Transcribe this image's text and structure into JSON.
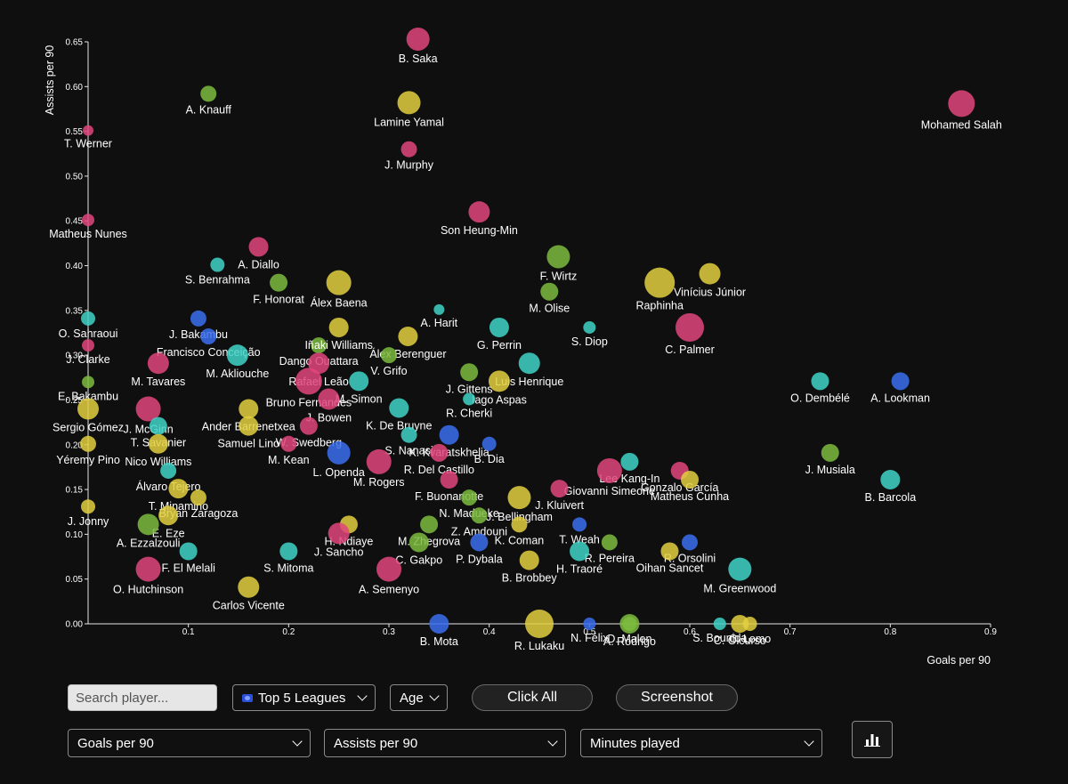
{
  "controls": {
    "search_placeholder": "Search player...",
    "league": "Top 5 Leagues",
    "age": "Age",
    "click_all": "Click All",
    "screenshot": "Screenshot",
    "x_metric": "Goals per 90",
    "y_metric": "Assists per 90",
    "size_metric": "Minutes played",
    "chart_icon": "bar-chart-icon"
  },
  "colors": {
    "background": "#0f0f0f",
    "pink": "#e0457b",
    "yellow": "#e3cf3f",
    "green": "#7cbb3e",
    "cyan": "#3fd3c8",
    "blue": "#3b6ff0"
  },
  "chart_data": {
    "type": "scatter",
    "xlabel": "Goals per 90",
    "ylabel": "Assists per 90",
    "xlim": [
      0,
      0.9
    ],
    "ylim": [
      0,
      0.65
    ],
    "x_ticks": [
      "0.1",
      "0.2",
      "0.3",
      "0.4",
      "0.5",
      "0.6",
      "0.7",
      "0.8",
      "0.9"
    ],
    "y_ticks": [
      "0.00",
      "0.05",
      "0.10",
      "0.15",
      "0.20",
      "0.25",
      "0.30",
      "0.35",
      "0.40",
      "0.45",
      "0.50",
      "0.55",
      "0.60",
      "0.65"
    ],
    "grid": false,
    "points": [
      {
        "label": "B. Saka",
        "x": 0.329,
        "y": 0.653,
        "color": "pink",
        "size": 13
      },
      {
        "label": "A. Knauff",
        "x": 0.12,
        "y": 0.592,
        "color": "green",
        "size": 9
      },
      {
        "label": "Lamine Yamal",
        "x": 0.32,
        "y": 0.582,
        "color": "yellow",
        "size": 13
      },
      {
        "label": "Mohamed Salah",
        "x": 0.871,
        "y": 0.581,
        "color": "pink",
        "size": 15
      },
      {
        "label": "T. Werner",
        "x": 0.0,
        "y": 0.551,
        "color": "pink",
        "size": 6
      },
      {
        "label": "J. Murphy",
        "x": 0.32,
        "y": 0.53,
        "color": "pink",
        "size": 9
      },
      {
        "label": "Son Heung-Min",
        "x": 0.39,
        "y": 0.46,
        "color": "pink",
        "size": 12
      },
      {
        "label": "Matheus Nunes",
        "x": 0.0,
        "y": 0.451,
        "color": "pink",
        "size": 7
      },
      {
        "label": "A. Diallo",
        "x": 0.17,
        "y": 0.421,
        "color": "pink",
        "size": 11
      },
      {
        "label": "F. Wirtz",
        "x": 0.469,
        "y": 0.41,
        "color": "green",
        "size": 13
      },
      {
        "label": "Vinícius Júnior",
        "x": 0.62,
        "y": 0.391,
        "color": "yellow",
        "size": 12
      },
      {
        "label": "Raphinha",
        "x": 0.57,
        "y": 0.381,
        "color": "yellow",
        "size": 17
      },
      {
        "label": "S. Benrahma",
        "x": 0.129,
        "y": 0.401,
        "color": "cyan",
        "size": 8
      },
      {
        "label": "F. Honorat",
        "x": 0.19,
        "y": 0.381,
        "color": "green",
        "size": 10
      },
      {
        "label": "Álex Baena",
        "x": 0.25,
        "y": 0.381,
        "color": "yellow",
        "size": 14
      },
      {
        "label": "M. Olise",
        "x": 0.46,
        "y": 0.371,
        "color": "green",
        "size": 10
      },
      {
        "label": "J. Bakambu",
        "x": 0.11,
        "y": 0.341,
        "color": "blue",
        "size": 9
      },
      {
        "label": "O. Sahraoui",
        "x": 0.0,
        "y": 0.341,
        "color": "cyan",
        "size": 8
      },
      {
        "label": "A. Harit",
        "x": 0.35,
        "y": 0.351,
        "color": "cyan",
        "size": 6
      },
      {
        "label": "Francisco Conceição",
        "x": 0.12,
        "y": 0.321,
        "color": "blue",
        "size": 9
      },
      {
        "label": "C. Palmer",
        "x": 0.6,
        "y": 0.331,
        "color": "pink",
        "size": 16
      },
      {
        "label": "S. Diop",
        "x": 0.5,
        "y": 0.331,
        "color": "cyan",
        "size": 7
      },
      {
        "label": "G. Perrin",
        "x": 0.41,
        "y": 0.331,
        "color": "cyan",
        "size": 11
      },
      {
        "label": "Dango Ouattara",
        "x": 0.23,
        "y": 0.311,
        "color": "green",
        "size": 9
      },
      {
        "label": "Iñaki Williams",
        "x": 0.25,
        "y": 0.331,
        "color": "yellow",
        "size": 11
      },
      {
        "label": "Álex Berenguer",
        "x": 0.319,
        "y": 0.321,
        "color": "yellow",
        "size": 11
      },
      {
        "label": "Rafael Leão",
        "x": 0.23,
        "y": 0.291,
        "color": "pink",
        "size": 12
      },
      {
        "label": "J. Clarke",
        "x": 0.0,
        "y": 0.311,
        "color": "pink",
        "size": 7
      },
      {
        "label": "M. Akliouche",
        "x": 0.149,
        "y": 0.3,
        "color": "cyan",
        "size": 12
      },
      {
        "label": "V. Grifo",
        "x": 0.3,
        "y": 0.3,
        "color": "green",
        "size": 9
      },
      {
        "label": "Luis Henrique",
        "x": 0.44,
        "y": 0.291,
        "color": "cyan",
        "size": 12
      },
      {
        "label": "Bruno Fernandes",
        "x": 0.22,
        "y": 0.271,
        "color": "pink",
        "size": 15
      },
      {
        "label": "M. Simon",
        "x": 0.27,
        "y": 0.271,
        "color": "cyan",
        "size": 11
      },
      {
        "label": "J. Gittens",
        "x": 0.38,
        "y": 0.281,
        "color": "green",
        "size": 10
      },
      {
        "label": "Iago Aspas",
        "x": 0.41,
        "y": 0.271,
        "color": "yellow",
        "size": 12
      },
      {
        "label": "O. Dembélé",
        "x": 0.73,
        "y": 0.271,
        "color": "cyan",
        "size": 10
      },
      {
        "label": "A. Lookman",
        "x": 0.81,
        "y": 0.271,
        "color": "blue",
        "size": 10
      },
      {
        "label": "M. Tavares",
        "x": 0.07,
        "y": 0.291,
        "color": "pink",
        "size": 12
      },
      {
        "label": "J. Bowen",
        "x": 0.24,
        "y": 0.251,
        "color": "pink",
        "size": 12
      },
      {
        "label": "K. De Bruyne",
        "x": 0.31,
        "y": 0.241,
        "color": "cyan",
        "size": 11
      },
      {
        "label": "Ander Barrenetxea",
        "x": 0.16,
        "y": 0.24,
        "color": "yellow",
        "size": 11
      },
      {
        "label": "E. Bakambu",
        "x": 0.0,
        "y": 0.27,
        "color": "green",
        "size": 7
      },
      {
        "label": "R. Cherki",
        "x": 0.38,
        "y": 0.251,
        "color": "cyan",
        "size": 7
      },
      {
        "label": "Sergio Gómez",
        "x": 0.0,
        "y": 0.24,
        "color": "yellow",
        "size": 12
      },
      {
        "label": "J. McGinn",
        "x": 0.06,
        "y": 0.24,
        "color": "pink",
        "size": 14
      },
      {
        "label": "S. Nanasi",
        "x": 0.32,
        "y": 0.211,
        "color": "cyan",
        "size": 9
      },
      {
        "label": "W. Swedberg",
        "x": 0.22,
        "y": 0.221,
        "color": "pink",
        "size": 10
      },
      {
        "label": "Samuel Lino",
        "x": 0.16,
        "y": 0.221,
        "color": "yellow",
        "size": 11
      },
      {
        "label": "T. Savanier",
        "x": 0.07,
        "y": 0.221,
        "color": "cyan",
        "size": 10
      },
      {
        "label": "K. Kvaratskhelia",
        "x": 0.36,
        "y": 0.211,
        "color": "blue",
        "size": 11
      },
      {
        "label": "M. Kean",
        "x": 0.2,
        "y": 0.201,
        "color": "pink",
        "size": 9
      },
      {
        "label": "Yéremy Pino",
        "x": 0.0,
        "y": 0.201,
        "color": "yellow",
        "size": 9
      },
      {
        "label": "Nico Williams",
        "x": 0.07,
        "y": 0.201,
        "color": "yellow",
        "size": 11
      },
      {
        "label": "L. Openda",
        "x": 0.25,
        "y": 0.191,
        "color": "blue",
        "size": 13
      },
      {
        "label": "R. Del Castillo",
        "x": 0.35,
        "y": 0.191,
        "color": "pink",
        "size": 10
      },
      {
        "label": "B. Dia",
        "x": 0.4,
        "y": 0.201,
        "color": "blue",
        "size": 8
      },
      {
        "label": "J. Musiala",
        "x": 0.74,
        "y": 0.191,
        "color": "green",
        "size": 10
      },
      {
        "label": "B. Barcola",
        "x": 0.8,
        "y": 0.161,
        "color": "cyan",
        "size": 11
      },
      {
        "label": "Lee Kang-In",
        "x": 0.54,
        "y": 0.181,
        "color": "cyan",
        "size": 10
      },
      {
        "label": "Gonzalo García",
        "x": 0.59,
        "y": 0.171,
        "color": "pink",
        "size": 10
      },
      {
        "label": "Giovanni Simeone",
        "x": 0.52,
        "y": 0.171,
        "color": "pink",
        "size": 14
      },
      {
        "label": "Álvaro Tejero",
        "x": 0.08,
        "y": 0.171,
        "color": "cyan",
        "size": 9
      },
      {
        "label": "T. Minamino",
        "x": 0.09,
        "y": 0.151,
        "color": "yellow",
        "size": 11
      },
      {
        "label": "Bryan Zaragoza",
        "x": 0.11,
        "y": 0.141,
        "color": "yellow",
        "size": 9
      },
      {
        "label": "M. Rogers",
        "x": 0.29,
        "y": 0.181,
        "color": "pink",
        "size": 14
      },
      {
        "label": "F. Buonanotte",
        "x": 0.36,
        "y": 0.161,
        "color": "pink",
        "size": 10
      },
      {
        "label": "N. Madueke",
        "x": 0.38,
        "y": 0.141,
        "color": "green",
        "size": 9
      },
      {
        "label": "J. Kluivert",
        "x": 0.47,
        "y": 0.151,
        "color": "pink",
        "size": 10
      },
      {
        "label": "J. Bellingham",
        "x": 0.43,
        "y": 0.141,
        "color": "yellow",
        "size": 13
      },
      {
        "label": "Matheus Cunha",
        "x": 0.6,
        "y": 0.161,
        "color": "yellow",
        "size": 10
      },
      {
        "label": "E. Eze",
        "x": 0.08,
        "y": 0.121,
        "color": "yellow",
        "size": 11
      },
      {
        "label": "A. Ezzalzouli",
        "x": 0.06,
        "y": 0.111,
        "color": "green",
        "size": 12
      },
      {
        "label": "J. Jonny",
        "x": 0.0,
        "y": 0.131,
        "color": "yellow",
        "size": 8
      },
      {
        "label": "M. Zhegrova",
        "x": 0.34,
        "y": 0.111,
        "color": "green",
        "size": 10
      },
      {
        "label": "Z. Amdouni",
        "x": 0.39,
        "y": 0.121,
        "color": "green",
        "size": 9
      },
      {
        "label": "K. Coman",
        "x": 0.43,
        "y": 0.111,
        "color": "yellow",
        "size": 9
      },
      {
        "label": "T. Weah",
        "x": 0.49,
        "y": 0.111,
        "color": "blue",
        "size": 8
      },
      {
        "label": "H. Ndiaye",
        "x": 0.26,
        "y": 0.111,
        "color": "yellow",
        "size": 10
      },
      {
        "label": "C. Gakpo",
        "x": 0.33,
        "y": 0.091,
        "color": "green",
        "size": 11
      },
      {
        "label": "J. Sancho",
        "x": 0.25,
        "y": 0.101,
        "color": "pink",
        "size": 12
      },
      {
        "label": "P. Dybala",
        "x": 0.39,
        "y": 0.091,
        "color": "blue",
        "size": 10
      },
      {
        "label": "S. Mitoma",
        "x": 0.2,
        "y": 0.081,
        "color": "cyan",
        "size": 10
      },
      {
        "label": "F. El Melali",
        "x": 0.1,
        "y": 0.081,
        "color": "cyan",
        "size": 10
      },
      {
        "label": "R. Orsolini",
        "x": 0.6,
        "y": 0.091,
        "color": "blue",
        "size": 9
      },
      {
        "label": "R. Pereira",
        "x": 0.52,
        "y": 0.091,
        "color": "green",
        "size": 9
      },
      {
        "label": "Oihan Sancet",
        "x": 0.58,
        "y": 0.081,
        "color": "yellow",
        "size": 10
      },
      {
        "label": "O. Hutchinson",
        "x": 0.06,
        "y": 0.061,
        "color": "pink",
        "size": 14
      },
      {
        "label": "Carlos Vicente",
        "x": 0.16,
        "y": 0.041,
        "color": "yellow",
        "size": 12
      },
      {
        "label": "A. Semenyo",
        "x": 0.3,
        "y": 0.061,
        "color": "pink",
        "size": 14
      },
      {
        "label": "M. Greenwood",
        "x": 0.65,
        "y": 0.061,
        "color": "cyan",
        "size": 13
      },
      {
        "label": "H. Traoré",
        "x": 0.49,
        "y": 0.081,
        "color": "cyan",
        "size": 11
      },
      {
        "label": "B. Brobbey",
        "x": 0.44,
        "y": 0.071,
        "color": "yellow",
        "size": 11
      },
      {
        "label": "D. Malen",
        "x": 0.54,
        "y": 0.0,
        "color": "green",
        "size": 8
      },
      {
        "label": "R. Lukaku",
        "x": 0.45,
        "y": 0.0,
        "color": "yellow",
        "size": 16
      },
      {
        "label": "N. Félix",
        "x": 0.5,
        "y": 0.0,
        "color": "blue",
        "size": 7
      },
      {
        "label": "A. Rodrigo",
        "x": 0.54,
        "y": 0.0,
        "color": "green",
        "size": 11
      },
      {
        "label": "S. Bounida",
        "x": 0.63,
        "y": 0.0,
        "color": "cyan",
        "size": 7
      },
      {
        "label": "C. Olcurso",
        "x": 0.65,
        "y": 0.0,
        "color": "yellow",
        "size": 10
      },
      {
        "label": "C. Lomo",
        "x": 0.66,
        "y": 0.0,
        "color": "yellow",
        "size": 8
      },
      {
        "label": "B. Mota",
        "x": 0.35,
        "y": 0.0,
        "color": "blue",
        "size": 11
      }
    ]
  }
}
